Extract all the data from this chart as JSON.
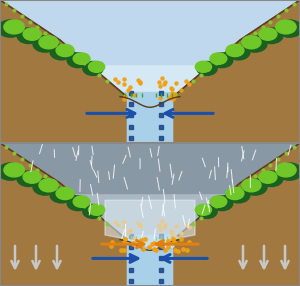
{
  "fig_width": 3.0,
  "fig_height": 2.86,
  "dpi": 100,
  "soil_color": "#a07840",
  "soil_edge": "#5a3e20",
  "water_bg": "#a8d0e8",
  "water_dots": "#1a4488",
  "stream_line": "#5c3a1a",
  "arrow_blue": "#1a50aa",
  "arrow_orange": "#e08010",
  "tree_dark": "#1a6020",
  "tree_light": "#70c828",
  "tree_mid": "#50a020",
  "orange_dots": "#f0a010",
  "shrub_green": "#88cc30",
  "panel_border": "#888888",
  "sky_color_1": "#d5e8f5",
  "sky_color_2": "#c0d8ee",
  "rain_sky": "#aab8c2",
  "rain_dark": "#8898a5",
  "rain_line": "#ddeeff",
  "white_arrow": "#cccccc",
  "flood_white": "#e0eef8"
}
